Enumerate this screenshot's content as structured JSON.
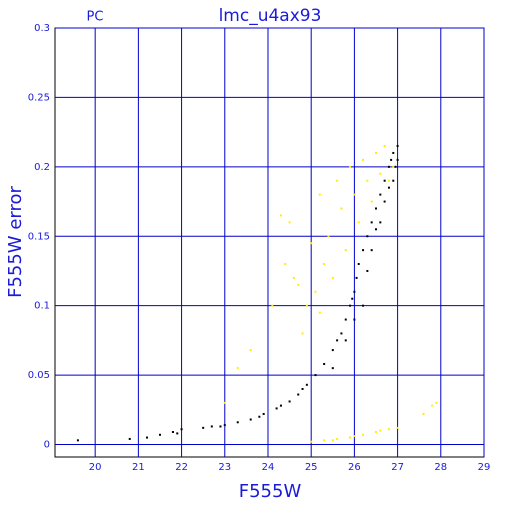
{
  "chart_data": {
    "type": "scatter",
    "title": "lmc_u4ax93",
    "subtitle": "PC",
    "x_label": "F555W",
    "y_label": "F555W error",
    "xlim": [
      19.07,
      29
    ],
    "ylim": [
      -0.009,
      0.3
    ],
    "xticks": [
      20,
      21,
      22,
      23,
      24,
      25,
      26,
      27,
      28,
      29
    ],
    "yticks": [
      0,
      0.05,
      0.1,
      0.15,
      0.2,
      0.25,
      0.3
    ],
    "grid": true,
    "grid_color": "#0000cc",
    "series": [
      {
        "color": "#000000",
        "x": [
          19.6,
          20.8,
          21.2,
          21.5,
          21.8,
          21.9,
          22,
          22.5,
          22.7,
          22.9,
          23,
          23.3,
          23.6,
          23.8,
          23.9,
          24.2,
          24.3,
          24.5,
          24.7,
          24.8,
          24.9,
          25.1,
          25.3,
          25.5,
          25.5,
          25.6,
          25.7,
          25.8,
          25.8,
          25.9,
          25.95,
          26,
          26,
          26.05,
          26.1,
          26.2,
          26.2,
          26.3,
          26.3,
          26.4,
          26.4,
          26.5,
          26.5,
          26.6,
          26.6,
          26.7,
          26.7,
          26.8,
          26.8,
          26.85,
          26.9,
          26.9,
          26.95,
          27,
          27
        ],
        "values": [
          0.003,
          0.004,
          0.005,
          0.007,
          0.009,
          0.008,
          0.011,
          0.012,
          0.013,
          0.013,
          0.014,
          0.016,
          0.018,
          0.02,
          0.022,
          0.026,
          0.028,
          0.031,
          0.036,
          0.04,
          0.043,
          0.05,
          0.058,
          0.068,
          0.055,
          0.075,
          0.08,
          0.09,
          0.075,
          0.1,
          0.105,
          0.11,
          0.09,
          0.12,
          0.13,
          0.14,
          0.1,
          0.15,
          0.125,
          0.16,
          0.14,
          0.17,
          0.155,
          0.18,
          0.16,
          0.19,
          0.175,
          0.2,
          0.185,
          0.205,
          0.21,
          0.19,
          0.2,
          0.215,
          0.205
        ]
      },
      {
        "color": "#ffee00",
        "x": [
          25,
          25.3,
          25.5,
          25.6,
          25.9,
          26,
          26.2,
          26.5,
          26.6,
          26.8,
          27,
          27.6,
          27.8,
          27.9,
          23,
          23.3,
          23.6,
          24.1,
          24.3,
          24.4,
          24.5,
          24.6,
          24.7,
          24.8,
          24.9,
          25,
          25.1,
          25.2,
          25.2,
          25.3,
          25.4,
          25.5,
          25.6,
          25.7,
          25.8,
          25.9,
          26,
          26.1,
          26.2,
          26.3,
          26.4,
          26.5,
          26.6,
          26.7,
          26.8,
          26.9
        ],
        "values": [
          0.002,
          0.003,
          0.003,
          0.004,
          0.005,
          0.006,
          0.007,
          0.009,
          0.01,
          0.011,
          0.012,
          0.022,
          0.028,
          0.03,
          0.03,
          0.055,
          0.068,
          0.1,
          0.165,
          0.13,
          0.16,
          0.12,
          0.115,
          0.08,
          0.1,
          0.145,
          0.11,
          0.18,
          0.095,
          0.13,
          0.15,
          0.12,
          0.19,
          0.17,
          0.14,
          0.2,
          0.18,
          0.16,
          0.205,
          0.19,
          0.175,
          0.21,
          0.195,
          0.215,
          0.19,
          0.2
        ]
      }
    ]
  }
}
